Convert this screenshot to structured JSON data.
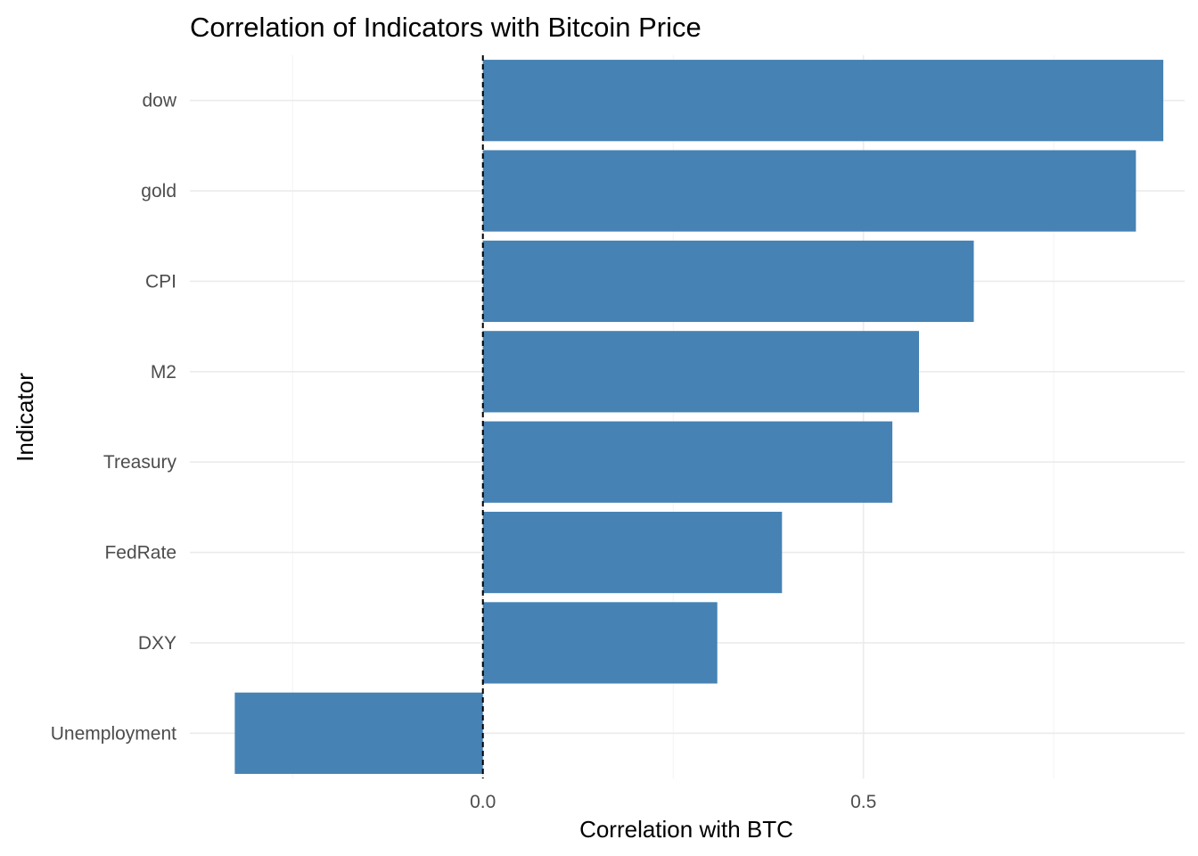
{
  "chart_data": {
    "type": "bar",
    "orientation": "horizontal",
    "title": "Correlation of Indicators with Bitcoin Price",
    "xlabel": "Correlation with BTC",
    "ylabel": "Indicator",
    "categories": [
      "dow",
      "gold",
      "CPI",
      "M2",
      "Treasury",
      "FedRate",
      "DXY",
      "Unemployment"
    ],
    "values": [
      0.894,
      0.858,
      0.645,
      0.573,
      0.538,
      0.393,
      0.308,
      -0.326
    ],
    "xlim": [
      -0.385,
      0.922
    ],
    "x_ticks": [
      0.0,
      0.5
    ],
    "x_tick_labels": [
      "0.0",
      "0.5"
    ],
    "reference_line": {
      "x": 0,
      "style": "dashed"
    },
    "grid": true,
    "legend": "none",
    "bar_color": "#4682b4"
  }
}
